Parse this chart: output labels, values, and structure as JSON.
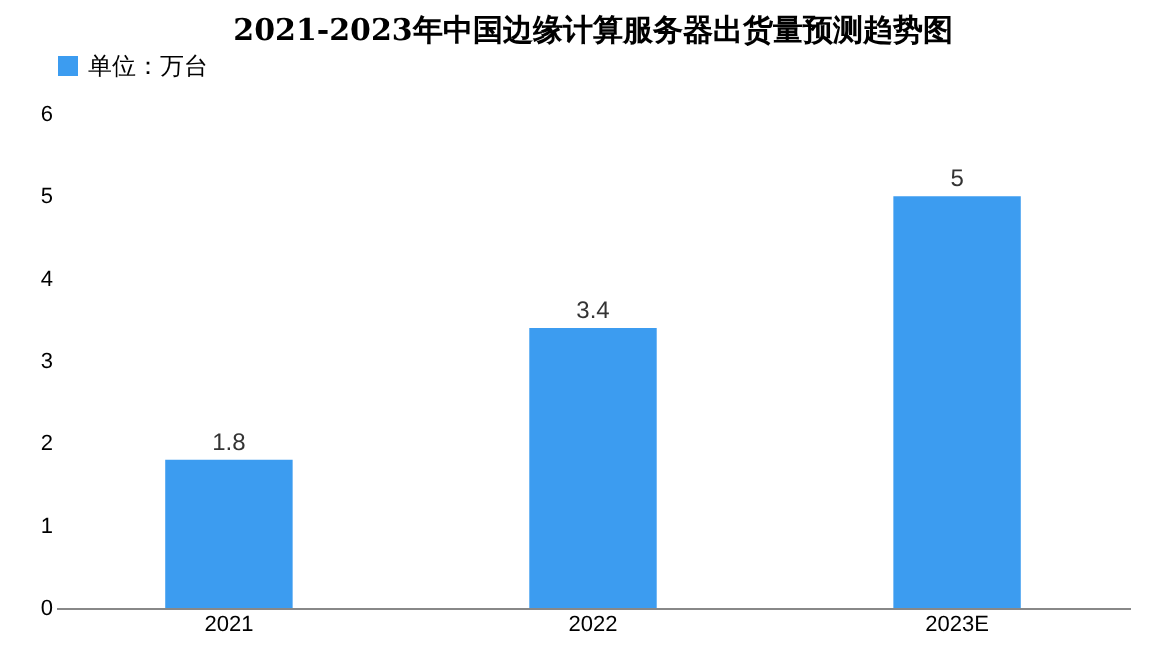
{
  "chart_data": {
    "type": "bar",
    "title": "2021-2023年中国边缘计算服务器出货量预测趋势图",
    "categories": [
      "2021",
      "2022",
      "2023E"
    ],
    "series": [
      {
        "name": "单位：万台",
        "color": "#3c9cf0",
        "values": [
          1.8,
          3.4,
          5
        ]
      }
    ],
    "ylim": [
      0,
      6
    ],
    "yticks": [
      0,
      1,
      2,
      3,
      4,
      5,
      6
    ],
    "grid": false,
    "legend": "top",
    "data_labels": true
  }
}
